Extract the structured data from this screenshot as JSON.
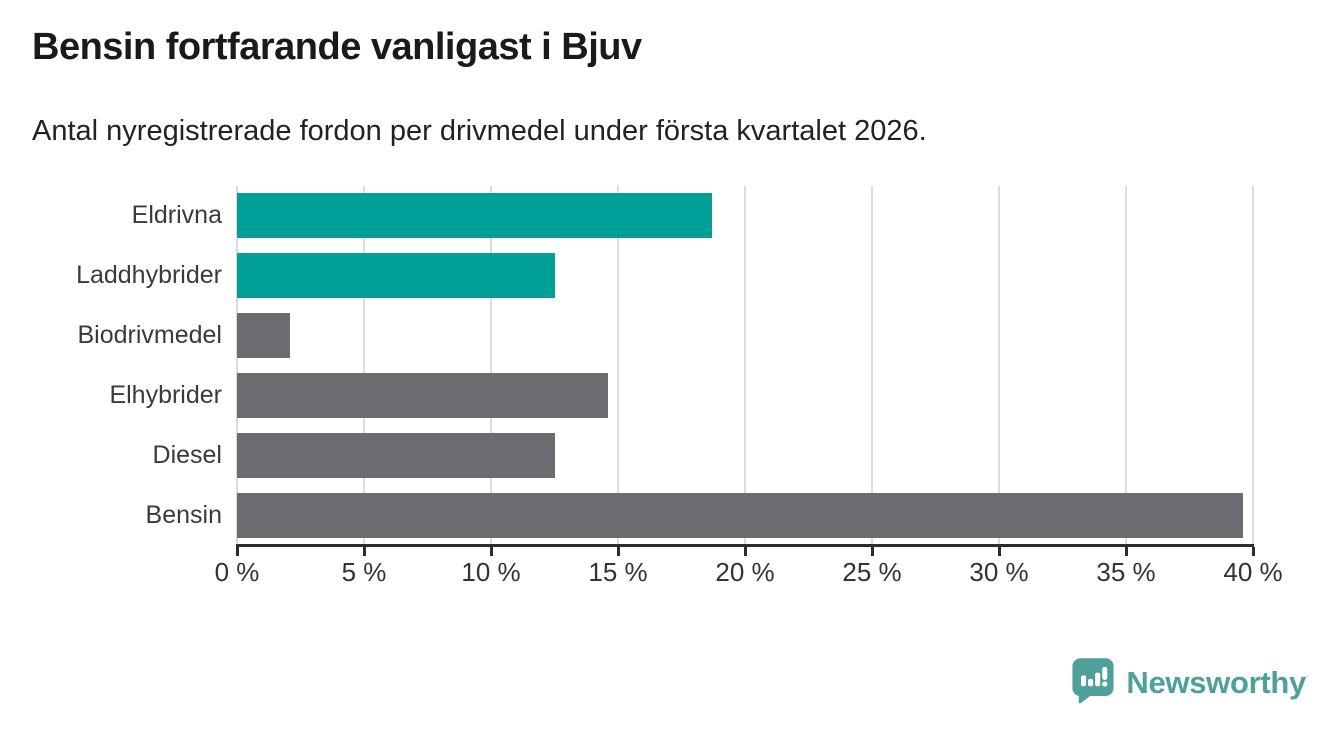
{
  "title": "Bensin fortfarande vanligast i Bjuv",
  "subtitle": "Antal nyregistrerade fordon per drivmedel under första kvartalet 2026.",
  "chart_data": {
    "type": "bar",
    "orientation": "horizontal",
    "title": "Bensin fortfarande vanligast i Bjuv",
    "subtitle": "Antal nyregistrerade fordon per drivmedel under första kvartalet 2026.",
    "categories": [
      "Eldrivna",
      "Laddhybrider",
      "Biodrivmedel",
      "Elhybrider",
      "Diesel",
      "Bensin"
    ],
    "values": [
      18.7,
      12.5,
      2.1,
      14.6,
      12.5,
      39.6
    ],
    "unit": "%",
    "xlim": [
      0,
      40
    ],
    "x_tick_labels": [
      "0 %",
      "5 %",
      "10 %",
      "15 %",
      "20 %",
      "25 %",
      "30 %",
      "35 %",
      "40 %"
    ],
    "x_tick_values": [
      0,
      5,
      10,
      15,
      20,
      25,
      30,
      35,
      40
    ],
    "grid": true,
    "bar_colors": [
      "#00a099",
      "#00a099",
      "#6b6b70",
      "#6b6b70",
      "#6b6b70",
      "#6b6b70"
    ],
    "highlight_color": "#00a099",
    "default_color": "#6b6b70",
    "gridline_color": "#dcdcdc",
    "axis_color": "#2d2d2d"
  },
  "branding": {
    "logo_text": "Newsworthy",
    "logo_color": "#4fa09a",
    "logo_icon": "bar-chart-speech-bubble-icon"
  }
}
